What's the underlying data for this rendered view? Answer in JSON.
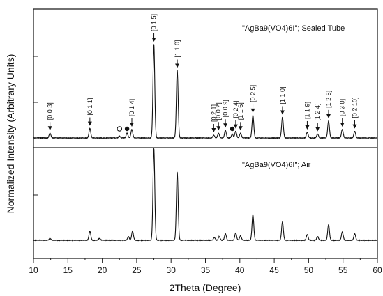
{
  "chart_data": [
    {
      "type": "line",
      "xlabel": "2Theta (Degree)",
      "ylabel": "Normalized Intensity (Arbitrary Units)",
      "xlim": [
        10,
        60
      ],
      "x_ticks": [
        10,
        15,
        20,
        25,
        30,
        35,
        40,
        45,
        50,
        55,
        60
      ],
      "series": [
        {
          "name": "\"AgBa9(VO4)6I\"; Sealed Tube",
          "peaks": [
            {
              "x": 12.4,
              "y": 0.05
            },
            {
              "x": 18.2,
              "y": 0.1
            },
            {
              "x": 22.5,
              "y": 0.02
            },
            {
              "x": 23.6,
              "y": 0.05
            },
            {
              "x": 24.3,
              "y": 0.09
            },
            {
              "x": 27.5,
              "y": 1.0
            },
            {
              "x": 30.9,
              "y": 0.72
            },
            {
              "x": 36.2,
              "y": 0.03
            },
            {
              "x": 36.9,
              "y": 0.05
            },
            {
              "x": 37.9,
              "y": 0.08
            },
            {
              "x": 38.9,
              "y": 0.04
            },
            {
              "x": 39.4,
              "y": 0.07
            },
            {
              "x": 40.1,
              "y": 0.05
            },
            {
              "x": 41.9,
              "y": 0.24
            },
            {
              "x": 46.2,
              "y": 0.22
            },
            {
              "x": 49.8,
              "y": 0.06
            },
            {
              "x": 51.3,
              "y": 0.04
            },
            {
              "x": 52.9,
              "y": 0.18
            },
            {
              "x": 54.9,
              "y": 0.09
            },
            {
              "x": 56.7,
              "y": 0.07
            }
          ]
        },
        {
          "name": "\"AgBa9(VO4)6I\"; Air",
          "peaks": [
            {
              "x": 12.4,
              "y": 0.02
            },
            {
              "x": 18.2,
              "y": 0.1
            },
            {
              "x": 19.6,
              "y": 0.02
            },
            {
              "x": 23.8,
              "y": 0.04
            },
            {
              "x": 24.4,
              "y": 0.1
            },
            {
              "x": 27.5,
              "y": 1.0
            },
            {
              "x": 30.9,
              "y": 0.74
            },
            {
              "x": 36.3,
              "y": 0.03
            },
            {
              "x": 37.0,
              "y": 0.04
            },
            {
              "x": 37.9,
              "y": 0.07
            },
            {
              "x": 39.4,
              "y": 0.08
            },
            {
              "x": 40.1,
              "y": 0.05
            },
            {
              "x": 41.9,
              "y": 0.28
            },
            {
              "x": 46.2,
              "y": 0.2
            },
            {
              "x": 49.8,
              "y": 0.06
            },
            {
              "x": 51.3,
              "y": 0.04
            },
            {
              "x": 52.9,
              "y": 0.17
            },
            {
              "x": 54.9,
              "y": 0.09
            },
            {
              "x": 56.7,
              "y": 0.07
            }
          ]
        }
      ],
      "annotations": [
        {
          "label": "[0 0 3]",
          "x": 12.4
        },
        {
          "label": "[0 1 1]",
          "x": 18.2
        },
        {
          "label": "[0 1 4]",
          "x": 24.3
        },
        {
          "label": "[0 1 5]",
          "x": 27.5
        },
        {
          "label": "[1 1 0]",
          "x": 30.9
        },
        {
          "label": "[0 2 1]",
          "x": 36.2
        },
        {
          "label": "[0 0 2]",
          "x": 36.9
        },
        {
          "label": "[0 0 9]",
          "x": 37.9
        },
        {
          "label": "[0 2 4]",
          "x": 39.4
        },
        {
          "label": "[1 1 6]",
          "x": 40.1
        },
        {
          "label": "[0 2 5]",
          "x": 41.9
        },
        {
          "label": "[1 1 0]",
          "x": 46.2
        },
        {
          "label": "[1 1 9]",
          "x": 49.8
        },
        {
          "label": "[1 2 4]",
          "x": 51.3
        },
        {
          "label": "[1 2 5]",
          "x": 52.9
        },
        {
          "label": "[0 3 0]",
          "x": 54.9
        },
        {
          "label": "[0 2 10]",
          "x": 56.7
        }
      ],
      "impurity_markers": [
        {
          "symbol": "open-circle",
          "x": 22.5
        },
        {
          "symbol": "filled-circle",
          "x": 23.6
        },
        {
          "symbol": "filled-circle",
          "x": 38.9
        }
      ],
      "grid": false
    }
  ]
}
